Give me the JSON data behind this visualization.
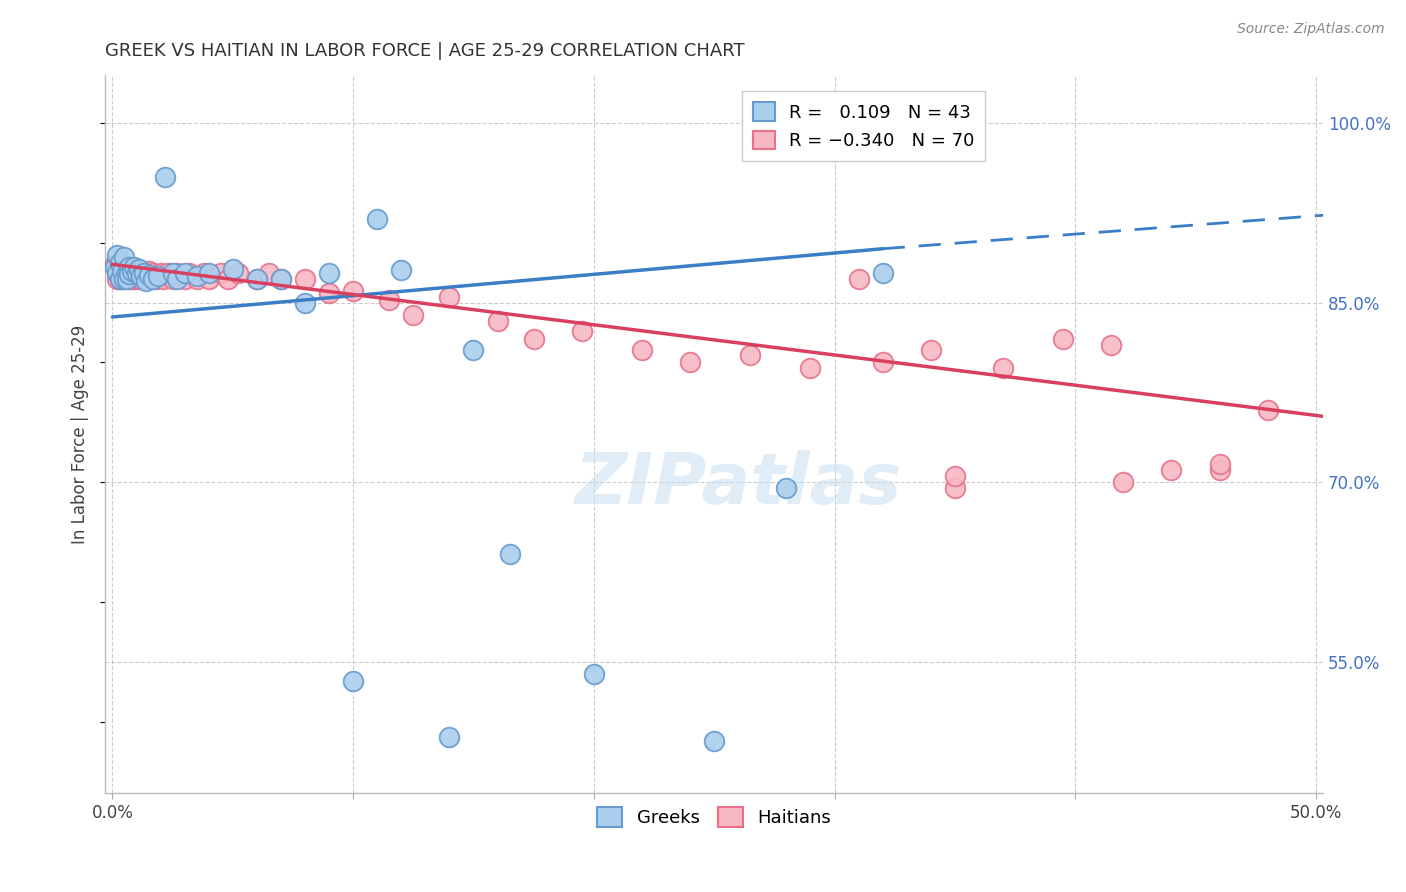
{
  "title": "GREEK VS HAITIAN IN LABOR FORCE | AGE 25-29 CORRELATION CHART",
  "source": "Source: ZipAtlas.com",
  "ylabel": "In Labor Force | Age 25-29",
  "xlim": [
    -0.003,
    0.503
  ],
  "ylim": [
    0.44,
    1.04
  ],
  "greek_color": "#aacfee",
  "greek_edge": "#6699cc",
  "haitian_color": "#f7b8c4",
  "haitian_edge": "#e8708a",
  "trendline_greek_color": "#3a7ec8",
  "trendline_haitian_color": "#d94060",
  "greek_trend_x0": 0.0,
  "greek_trend_y0": 0.838,
  "greek_trend_x1": 0.32,
  "greek_trend_y1": 0.895,
  "greek_trend_xdash_x0": 0.32,
  "greek_trend_xdash_y0": 0.895,
  "greek_trend_xdash_x1": 0.503,
  "greek_trend_xdash_y1": 0.923,
  "haitian_trend_x0": 0.0,
  "haitian_trend_y0": 0.882,
  "haitian_trend_x1": 0.503,
  "haitian_trend_y1": 0.755,
  "greek_pts": [
    [
      0.001,
      0.88
    ],
    [
      0.002,
      0.89
    ],
    [
      0.002,
      0.875
    ],
    [
      0.003,
      0.883
    ],
    [
      0.003,
      0.87
    ],
    [
      0.004,
      0.876
    ],
    [
      0.005,
      0.888
    ],
    [
      0.005,
      0.87
    ],
    [
      0.006,
      0.875
    ],
    [
      0.006,
      0.87
    ],
    [
      0.007,
      0.88
    ],
    [
      0.007,
      0.874
    ],
    [
      0.008,
      0.876
    ],
    [
      0.009,
      0.88
    ],
    [
      0.01,
      0.875
    ],
    [
      0.011,
      0.878
    ],
    [
      0.012,
      0.872
    ],
    [
      0.013,
      0.875
    ],
    [
      0.014,
      0.868
    ],
    [
      0.015,
      0.873
    ],
    [
      0.017,
      0.87
    ],
    [
      0.019,
      0.872
    ],
    [
      0.022,
      0.955
    ],
    [
      0.025,
      0.875
    ],
    [
      0.027,
      0.87
    ],
    [
      0.03,
      0.875
    ],
    [
      0.035,
      0.872
    ],
    [
      0.04,
      0.875
    ],
    [
      0.05,
      0.878
    ],
    [
      0.06,
      0.87
    ],
    [
      0.07,
      0.87
    ],
    [
      0.08,
      0.85
    ],
    [
      0.09,
      0.875
    ],
    [
      0.11,
      0.92
    ],
    [
      0.12,
      0.877
    ],
    [
      0.15,
      0.81
    ],
    [
      0.165,
      0.64
    ],
    [
      0.2,
      0.54
    ],
    [
      0.25,
      0.484
    ],
    [
      0.28,
      0.695
    ],
    [
      0.32,
      0.875
    ],
    [
      0.1,
      0.534
    ],
    [
      0.14,
      0.487
    ]
  ],
  "haitian_pts": [
    [
      0.001,
      0.882
    ],
    [
      0.002,
      0.878
    ],
    [
      0.002,
      0.87
    ],
    [
      0.003,
      0.875
    ],
    [
      0.003,
      0.87
    ],
    [
      0.004,
      0.876
    ],
    [
      0.004,
      0.87
    ],
    [
      0.005,
      0.878
    ],
    [
      0.005,
      0.872
    ],
    [
      0.006,
      0.875
    ],
    [
      0.006,
      0.87
    ],
    [
      0.007,
      0.876
    ],
    [
      0.007,
      0.87
    ],
    [
      0.008,
      0.874
    ],
    [
      0.008,
      0.87
    ],
    [
      0.009,
      0.876
    ],
    [
      0.009,
      0.87
    ],
    [
      0.01,
      0.875
    ],
    [
      0.01,
      0.87
    ],
    [
      0.011,
      0.873
    ],
    [
      0.012,
      0.87
    ],
    [
      0.013,
      0.875
    ],
    [
      0.014,
      0.87
    ],
    [
      0.015,
      0.876
    ],
    [
      0.016,
      0.871
    ],
    [
      0.017,
      0.875
    ],
    [
      0.018,
      0.87
    ],
    [
      0.02,
      0.875
    ],
    [
      0.021,
      0.87
    ],
    [
      0.023,
      0.875
    ],
    [
      0.025,
      0.87
    ],
    [
      0.027,
      0.875
    ],
    [
      0.03,
      0.87
    ],
    [
      0.032,
      0.875
    ],
    [
      0.035,
      0.87
    ],
    [
      0.038,
      0.875
    ],
    [
      0.04,
      0.87
    ],
    [
      0.045,
      0.875
    ],
    [
      0.048,
      0.87
    ],
    [
      0.052,
      0.875
    ],
    [
      0.06,
      0.87
    ],
    [
      0.065,
      0.875
    ],
    [
      0.07,
      0.87
    ],
    [
      0.08,
      0.87
    ],
    [
      0.09,
      0.858
    ],
    [
      0.1,
      0.86
    ],
    [
      0.115,
      0.852
    ],
    [
      0.125,
      0.84
    ],
    [
      0.14,
      0.855
    ],
    [
      0.16,
      0.835
    ],
    [
      0.175,
      0.82
    ],
    [
      0.195,
      0.826
    ],
    [
      0.22,
      0.81
    ],
    [
      0.24,
      0.8
    ],
    [
      0.265,
      0.806
    ],
    [
      0.29,
      0.795
    ],
    [
      0.32,
      0.8
    ],
    [
      0.34,
      0.81
    ],
    [
      0.37,
      0.795
    ],
    [
      0.395,
      0.82
    ],
    [
      0.415,
      0.815
    ],
    [
      0.44,
      0.71
    ],
    [
      0.46,
      0.71
    ],
    [
      0.31,
      0.87
    ],
    [
      0.35,
      0.695
    ],
    [
      0.42,
      0.7
    ],
    [
      0.35,
      0.705
    ],
    [
      0.46,
      0.715
    ],
    [
      0.48,
      0.76
    ]
  ],
  "ytick_positions": [
    0.55,
    0.7,
    0.85,
    1.0
  ],
  "ytick_labels": [
    "55.0%",
    "70.0%",
    "85.0%",
    "100.0%"
  ],
  "ytick_grid": [
    0.55,
    0.7,
    0.85,
    1.0
  ],
  "xtick_positions": [
    0.0,
    0.1,
    0.2,
    0.3,
    0.4,
    0.5
  ],
  "xtick_labels": [
    "0.0%",
    "",
    "",
    "",
    "",
    "50.0%"
  ]
}
